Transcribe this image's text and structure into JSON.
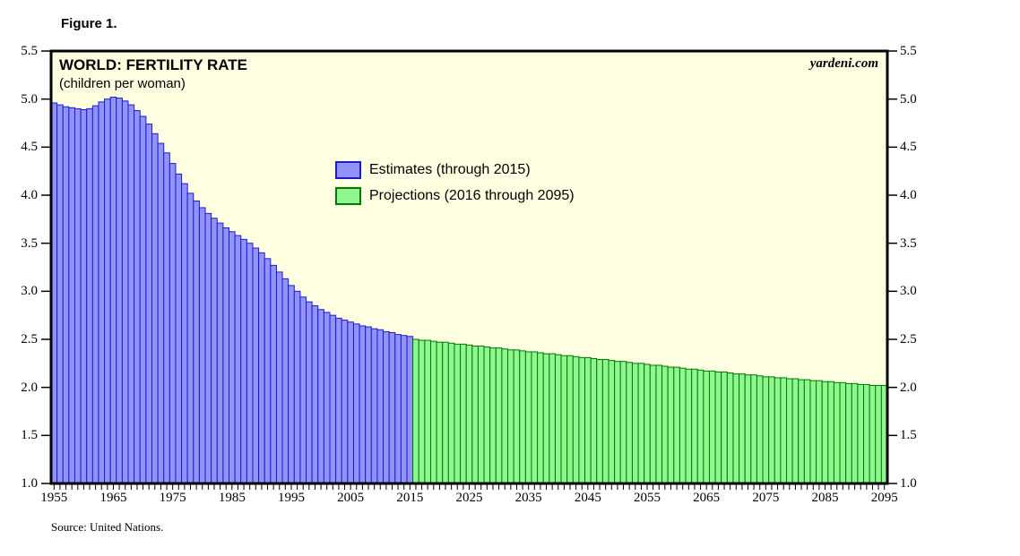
{
  "figure_label": "Figure 1.",
  "title": "WORLD: FERTILITY RATE",
  "subtitle": "(children per woman)",
  "watermark": "yardeni.com",
  "source": "Source: United Nations.",
  "legend": [
    {
      "label": "Estimates (through 2015)",
      "fill": "#9292fb",
      "border": "#1c1cc8"
    },
    {
      "label": "Projections (2016 through 2095)",
      "fill": "#90f690",
      "border": "#007a00"
    }
  ],
  "colors": {
    "plot_background": "#ffffe1",
    "frame": "#000000",
    "estimates_fill": "#9292fb",
    "estimates_border": "#1c1cc8",
    "projections_fill": "#90f690",
    "projections_border": "#007a00",
    "tick": "#000000"
  },
  "chart_data": {
    "type": "bar",
    "title": "WORLD: FERTILITY RATE",
    "subtitle": "(children per woman)",
    "xlabel": "",
    "ylabel": "children per woman",
    "ylim": [
      1.0,
      5.5
    ],
    "y_tick_labels": [
      "5.5",
      "5.0",
      "4.5",
      "4.0",
      "3.5",
      "3.0",
      "2.5",
      "2.0",
      "1.5",
      "1.0"
    ],
    "y_tick_values": [
      5.5,
      5.0,
      4.5,
      4.0,
      3.5,
      3.0,
      2.5,
      2.0,
      1.5,
      1.0
    ],
    "x_start_year": 1955,
    "x_end_year": 2095,
    "x_tick_years": [
      1955,
      1965,
      1975,
      1985,
      1995,
      2005,
      2015,
      2025,
      2035,
      2045,
      2055,
      2065,
      2075,
      2085,
      2095
    ],
    "grid": false,
    "legend_position": "inside-upper-middle",
    "series": [
      {
        "name": "Estimates (through 2015)",
        "start_year": 1955,
        "end_year": 2015,
        "values": [
          4.96,
          4.94,
          4.92,
          4.91,
          4.9,
          4.89,
          4.9,
          4.93,
          4.97,
          5.0,
          5.02,
          5.01,
          4.98,
          4.94,
          4.88,
          4.82,
          4.74,
          4.64,
          4.54,
          4.44,
          4.33,
          4.22,
          4.12,
          4.02,
          3.94,
          3.87,
          3.81,
          3.76,
          3.71,
          3.66,
          3.62,
          3.58,
          3.54,
          3.5,
          3.45,
          3.4,
          3.34,
          3.27,
          3.2,
          3.13,
          3.06,
          3.0,
          2.94,
          2.89,
          2.85,
          2.81,
          2.78,
          2.75,
          2.72,
          2.7,
          2.68,
          2.66,
          2.64,
          2.63,
          2.61,
          2.6,
          2.58,
          2.57,
          2.55,
          2.54,
          2.53
        ]
      },
      {
        "name": "Projections (2016 through 2095)",
        "start_year": 2016,
        "end_year": 2095,
        "values": [
          2.5,
          2.49,
          2.49,
          2.48,
          2.47,
          2.47,
          2.46,
          2.45,
          2.45,
          2.44,
          2.43,
          2.43,
          2.42,
          2.41,
          2.41,
          2.4,
          2.39,
          2.39,
          2.38,
          2.37,
          2.37,
          2.36,
          2.35,
          2.35,
          2.34,
          2.33,
          2.33,
          2.32,
          2.31,
          2.31,
          2.3,
          2.29,
          2.29,
          2.28,
          2.27,
          2.27,
          2.26,
          2.25,
          2.25,
          2.24,
          2.23,
          2.23,
          2.22,
          2.21,
          2.21,
          2.2,
          2.19,
          2.19,
          2.18,
          2.17,
          2.17,
          2.16,
          2.16,
          2.15,
          2.14,
          2.14,
          2.13,
          2.13,
          2.12,
          2.11,
          2.11,
          2.1,
          2.1,
          2.09,
          2.09,
          2.08,
          2.08,
          2.07,
          2.07,
          2.06,
          2.06,
          2.05,
          2.05,
          2.04,
          2.04,
          2.03,
          2.03,
          2.02,
          2.02,
          2.02
        ]
      }
    ]
  }
}
